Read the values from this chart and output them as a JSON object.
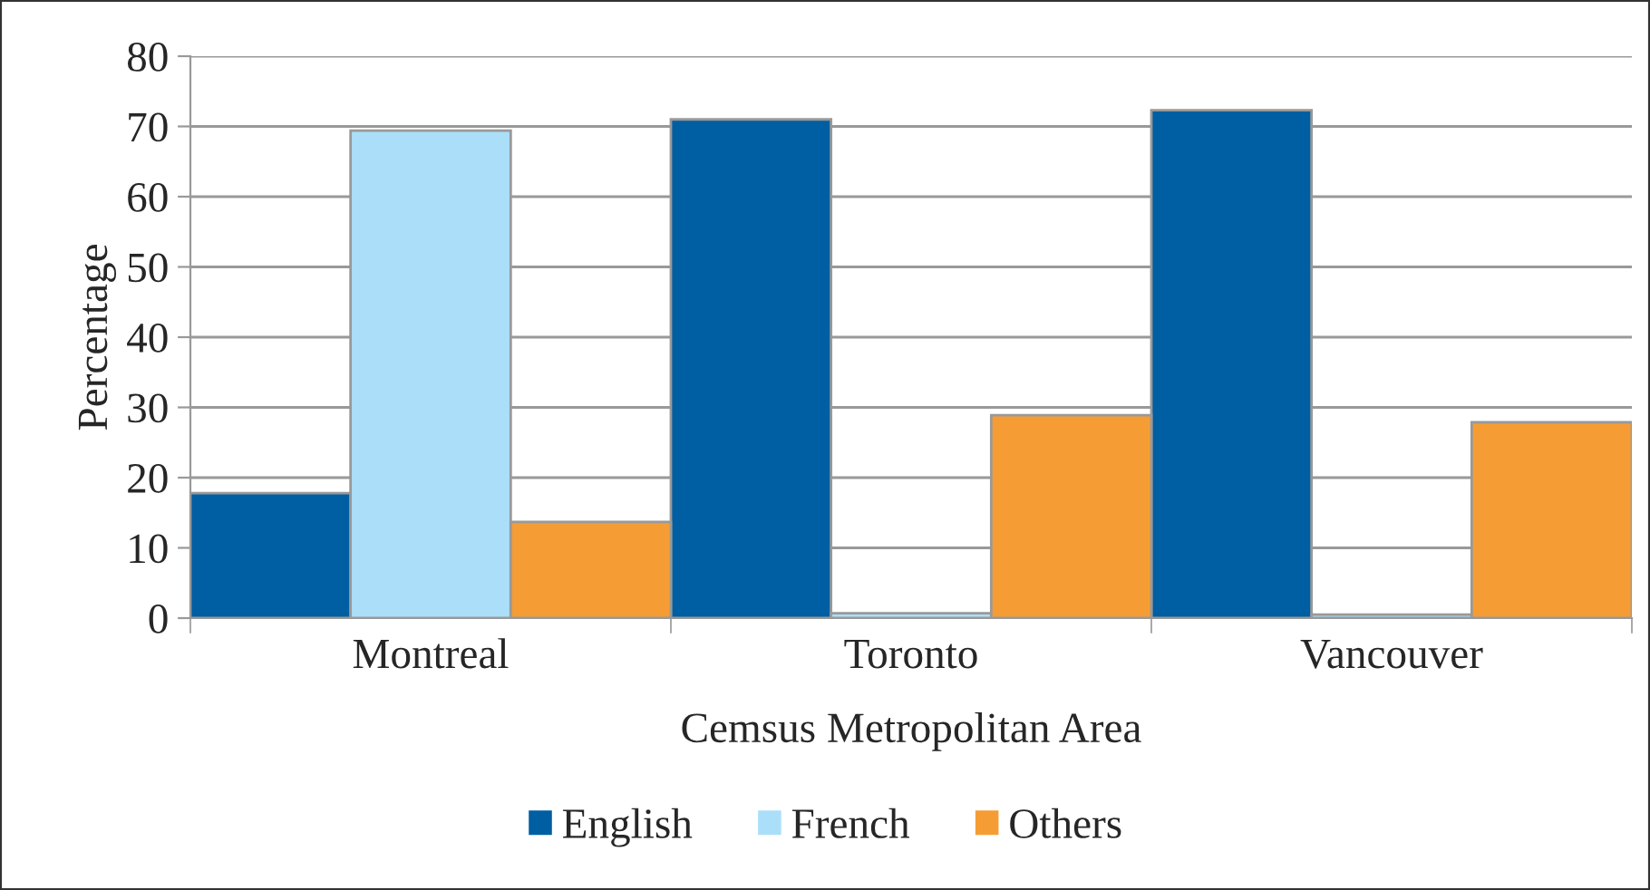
{
  "chart_data": {
    "type": "bar",
    "xlabel": "Cemsus Metropolitan Area",
    "ylabel": "Percentage",
    "categories": [
      "Montreal",
      "Toronto",
      "Vancouver"
    ],
    "series": [
      {
        "name": "English",
        "color": "#005ea2",
        "values": [
          17.8,
          71,
          72.3
        ]
      },
      {
        "name": "French",
        "color": "#abdff9",
        "values": [
          69.4,
          0.7,
          0.5
        ]
      },
      {
        "name": "Others",
        "color": "#f59d34",
        "values": [
          13.7,
          28.9,
          27.9
        ]
      }
    ],
    "ylim": [
      0,
      80
    ],
    "yticks": [
      0,
      10,
      20,
      30,
      40,
      50,
      60,
      70,
      80
    ],
    "grid": "y",
    "legend": "bottom"
  }
}
